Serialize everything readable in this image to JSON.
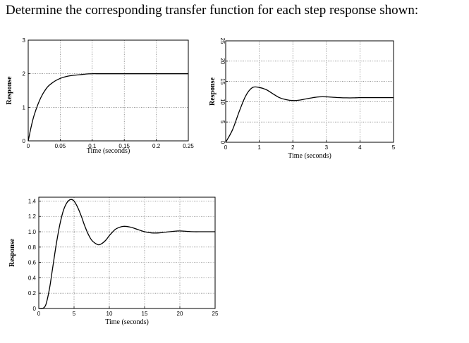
{
  "question": "Determine the corresponding transfer function for each step response shown:",
  "chart_data": [
    {
      "type": "line",
      "id": "plot1",
      "xlabel": "Time (seconds)",
      "ylabel": "Response",
      "xlim": [
        0,
        0.25
      ],
      "ylim": [
        0,
        3
      ],
      "xticks": [
        0,
        0.05,
        0.1,
        0.15,
        0.2,
        0.25
      ],
      "xtick_labels": [
        "0",
        "0.05",
        "0.1",
        "0.15",
        "0.2",
        "0.25"
      ],
      "yticks": [
        0,
        1,
        2,
        3
      ],
      "ytick_labels": [
        "0",
        "1",
        "2",
        "3"
      ],
      "grid": true,
      "x": [
        0,
        0.005,
        0.01,
        0.02,
        0.03,
        0.04,
        0.05,
        0.06,
        0.07,
        0.08,
        0.09,
        0.1,
        0.11,
        0.12,
        0.15,
        0.2,
        0.25
      ],
      "y": [
        0,
        0.45,
        0.81,
        1.3,
        1.6,
        1.76,
        1.86,
        1.92,
        1.95,
        1.97,
        1.99,
        2.0,
        2.0,
        2.0,
        2.0,
        2.0,
        2.0
      ]
    },
    {
      "type": "line",
      "id": "plot2",
      "xlabel": "Time (seconds)",
      "ylabel": "Response",
      "xlim": [
        0,
        5
      ],
      "ylim": [
        0,
        25
      ],
      "xticks": [
        0,
        1,
        2,
        3,
        4,
        5
      ],
      "xtick_labels": [
        "0",
        "1",
        "2",
        "3",
        "4",
        "5"
      ],
      "yticks": [
        0,
        5,
        10,
        15,
        20,
        25
      ],
      "ytick_labels": [
        "0",
        "5",
        "10",
        "15",
        "20",
        "25"
      ],
      "grid": true,
      "x": [
        0,
        0.2,
        0.4,
        0.6,
        0.8,
        1.0,
        1.2,
        1.4,
        1.6,
        1.8,
        2.0,
        2.2,
        2.4,
        2.6,
        2.8,
        3.0,
        3.2,
        3.4,
        3.6,
        3.8,
        4.0,
        4.5,
        5.0
      ],
      "y": [
        0,
        3,
        7.5,
        11.5,
        13.5,
        13.5,
        13.0,
        12.0,
        11.0,
        10.5,
        10.3,
        10.4,
        10.7,
        11.0,
        11.2,
        11.2,
        11.1,
        11.0,
        10.95,
        10.95,
        11.0,
        11.0,
        11.0
      ]
    },
    {
      "type": "line",
      "id": "plot3",
      "xlabel": "Time (seconds)",
      "ylabel": "Response",
      "xlim": [
        0,
        25
      ],
      "ylim": [
        0,
        1.45
      ],
      "xticks": [
        0,
        5,
        10,
        15,
        20,
        25
      ],
      "xtick_labels": [
        "0",
        "5",
        "10",
        "15",
        "20",
        "25"
      ],
      "yticks": [
        0,
        0.2,
        0.4,
        0.6,
        0.8,
        1.0,
        1.2,
        1.4
      ],
      "ytick_labels": [
        "0",
        "0.2",
        "0.4",
        "0.6",
        "0.8",
        "1.0",
        "1.2",
        "1.4"
      ],
      "grid": true,
      "x": [
        0,
        0.5,
        1,
        1.5,
        2,
        2.5,
        3,
        3.5,
        4,
        4.5,
        5,
        5.5,
        6,
        6.5,
        7,
        7.5,
        8,
        8.5,
        9,
        9.5,
        10,
        10.5,
        11,
        12,
        13,
        14,
        15,
        16,
        17,
        18,
        19,
        20,
        21,
        22,
        23,
        24,
        25
      ],
      "y": [
        0,
        0.0,
        0.05,
        0.25,
        0.55,
        0.85,
        1.1,
        1.28,
        1.38,
        1.42,
        1.4,
        1.32,
        1.21,
        1.08,
        0.97,
        0.89,
        0.85,
        0.83,
        0.85,
        0.89,
        0.95,
        1.0,
        1.04,
        1.07,
        1.06,
        1.03,
        1.0,
        0.985,
        0.985,
        0.995,
        1.005,
        1.01,
        1.005,
        1.0,
        1.0,
        1.0,
        1.0
      ]
    }
  ]
}
